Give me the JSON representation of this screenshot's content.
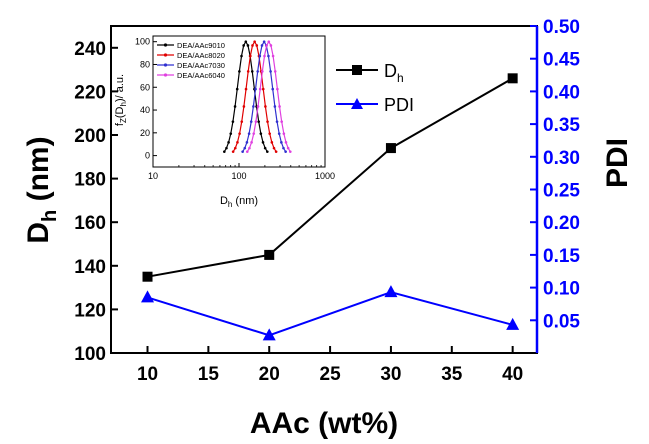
{
  "chart_data": {
    "type": "line",
    "xlabel": "AAc (wt%)",
    "ylabel_left": "D",
    "ylabel_left_sub": "h",
    "ylabel_left_unit": " (nm)",
    "ylabel_right": "PDI",
    "xlim": [
      7,
      42
    ],
    "ylim_left": [
      100,
      250
    ],
    "ylim_right": [
      0.0,
      0.5
    ],
    "x_ticks": [
      10,
      15,
      20,
      25,
      30,
      35,
      40
    ],
    "y_ticks_left": [
      100,
      120,
      140,
      160,
      180,
      200,
      220,
      240
    ],
    "y_ticks_right": [
      "0.05",
      "0.10",
      "0.15",
      "0.20",
      "0.25",
      "0.30",
      "0.35",
      "0.40",
      "0.45",
      "0.50"
    ],
    "grid": false,
    "legend_position": "top-right",
    "left_axis_color": "#000000",
    "right_axis_color": "#0000ff",
    "series": [
      {
        "name": "D",
        "name_sub": "h",
        "axis": "left",
        "color": "#000000",
        "marker": "square",
        "x": [
          10,
          20,
          30,
          40
        ],
        "y": [
          135,
          145,
          194,
          226
        ]
      },
      {
        "name": "PDI",
        "axis": "right",
        "color": "#0000ff",
        "marker": "triangle",
        "x": [
          10,
          20,
          30,
          40
        ],
        "y": [
          0.085,
          0.027,
          0.093,
          0.043
        ]
      }
    ],
    "inset": {
      "type": "line",
      "xscale": "log",
      "xlim": [
        10,
        1000
      ],
      "ylim": [
        -10,
        105
      ],
      "x_ticks": [
        "10",
        "100",
        "1000"
      ],
      "y_ticks": [
        "0",
        "20",
        "40",
        "60",
        "80",
        "100"
      ],
      "xlabel": "D",
      "xlabel_sub": "h",
      "xlabel_unit": " (nm)",
      "ylabel": "f",
      "ylabel_sub": "Z",
      "ylabel_rest": "(D",
      "ylabel_sub2": "h",
      "ylabel_tail": ")/ a.u.",
      "legend_position": "top-left",
      "series": [
        {
          "name": "DEA/AAc9010",
          "color": "#000000",
          "peak": 120,
          "sigma": 0.13
        },
        {
          "name": "DEA/AAc8020",
          "color": "#e00000",
          "peak": 152,
          "sigma": 0.13
        },
        {
          "name": "DEA/AAc7030",
          "color": "#3030d0",
          "peak": 196,
          "sigma": 0.13
        },
        {
          "name": "DEA/AAc6040",
          "color": "#e040e0",
          "peak": 222,
          "sigma": 0.13
        }
      ]
    }
  }
}
